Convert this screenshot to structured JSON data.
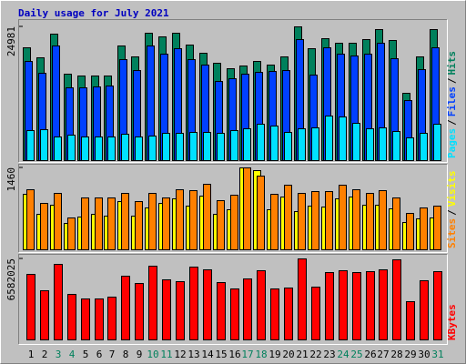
{
  "chart_data": {
    "type": "bar",
    "title": "Daily usage for July 2021",
    "legend_separator": "/",
    "categories": [
      "1",
      "2",
      "3",
      "4",
      "5",
      "6",
      "7",
      "8",
      "9",
      "10",
      "11",
      "12",
      "13",
      "14",
      "15",
      "16",
      "17",
      "18",
      "19",
      "20",
      "21",
      "22",
      "23",
      "24",
      "25",
      "26",
      "27",
      "28",
      "29",
      "30",
      "31"
    ],
    "category_colors": [
      "#000000",
      "#000000",
      "#00805c",
      "#00805c",
      "#000000",
      "#000000",
      "#000000",
      "#000000",
      "#000000",
      "#00805c",
      "#00805c",
      "#000000",
      "#000000",
      "#000000",
      "#000000",
      "#000000",
      "#00805c",
      "#00805c",
      "#000000",
      "#000000",
      "#000000",
      "#000000",
      "#000000",
      "#00805c",
      "#00805c",
      "#000000",
      "#000000",
      "#000000",
      "#000000",
      "#000000",
      "#00805c"
    ],
    "panels": [
      {
        "ylim": [
          0,
          24981
        ],
        "yticks": [
          24981
        ],
        "series": [
          {
            "name": "Hits",
            "color": "#00805c",
            "values": [
              21080,
              19210,
              23630,
              16150,
              15810,
              15810,
              15810,
              21420,
              19380,
              23800,
              23120,
              23800,
              21590,
              20060,
              18190,
              17170,
              17680,
              18530,
              17850,
              19380,
              24981,
              20910,
              22780,
              21930,
              21930,
              22610,
              24480,
              22440,
              12580,
              19380,
              24480
            ]
          },
          {
            "name": "Files",
            "color": "#0040ff",
            "values": [
              18530,
              16320,
              21420,
              13600,
              13600,
              13770,
              13940,
              18870,
              16830,
              21420,
              19890,
              20910,
              18870,
              17850,
              14790,
              15300,
              16150,
              16490,
              16660,
              16830,
              22610,
              15980,
              21080,
              19890,
              19550,
              19890,
              21930,
              19040,
              11220,
              17000,
              21080
            ]
          },
          {
            "name": "Pages",
            "color": "#00e0ff",
            "values": [
              5610,
              5780,
              4420,
              4760,
              4420,
              4420,
              4420,
              4930,
              4420,
              4590,
              5100,
              5100,
              5270,
              5270,
              5100,
              5610,
              5950,
              6800,
              6460,
              5270,
              5950,
              6120,
              8330,
              8160,
              6970,
              5950,
              6120,
              5440,
              4250,
              5100,
              6800
            ]
          }
        ]
      },
      {
        "ylim": [
          0,
          1460
        ],
        "yticks": [
          1460
        ],
        "series": [
          {
            "name": "Visits",
            "color": "#ffff00",
            "values": [
              988,
              632,
              794,
              470,
              583,
              632,
              599,
              859,
              599,
              745,
              826,
              907,
              778,
              956,
              632,
              713,
              1458,
              1409,
              713,
              940,
              680,
              778,
              761,
              907,
              940,
              794,
              794,
              729,
              486,
              551,
              567
            ]
          },
          {
            "name": "Sites",
            "color": "#ff8000",
            "values": [
              1070,
              826,
              1004,
              567,
              923,
              923,
              923,
              1004,
              859,
              1004,
              923,
              1069,
              1053,
              1166,
              875,
              972,
              1460,
              1312,
              988,
              1150,
              1004,
              1037,
              1037,
              1150,
              1069,
              1004,
              1053,
              923,
              648,
              745,
              778
            ]
          }
        ]
      },
      {
        "ylim": [
          0,
          6582025
        ],
        "yticks": [
          6582025
        ],
        "series": [
          {
            "name": "KBytes",
            "color": "#ff0000",
            "values": [
              5324760,
              3993570,
              6138265,
              3697750,
              3327975,
              3327975,
              3475885,
              5176850,
              4585210,
              5990355,
              4881030,
              4733120,
              5916400,
              5694535,
              4659165,
              4141480,
              4954985,
              5620580,
              4141480,
              4215435,
              6582025,
              4289390,
              5472670,
              5620580,
              5472670,
              5546625,
              5694535,
              6508040,
              3106110,
              4807075,
              5546625
            ]
          }
        ]
      }
    ]
  }
}
